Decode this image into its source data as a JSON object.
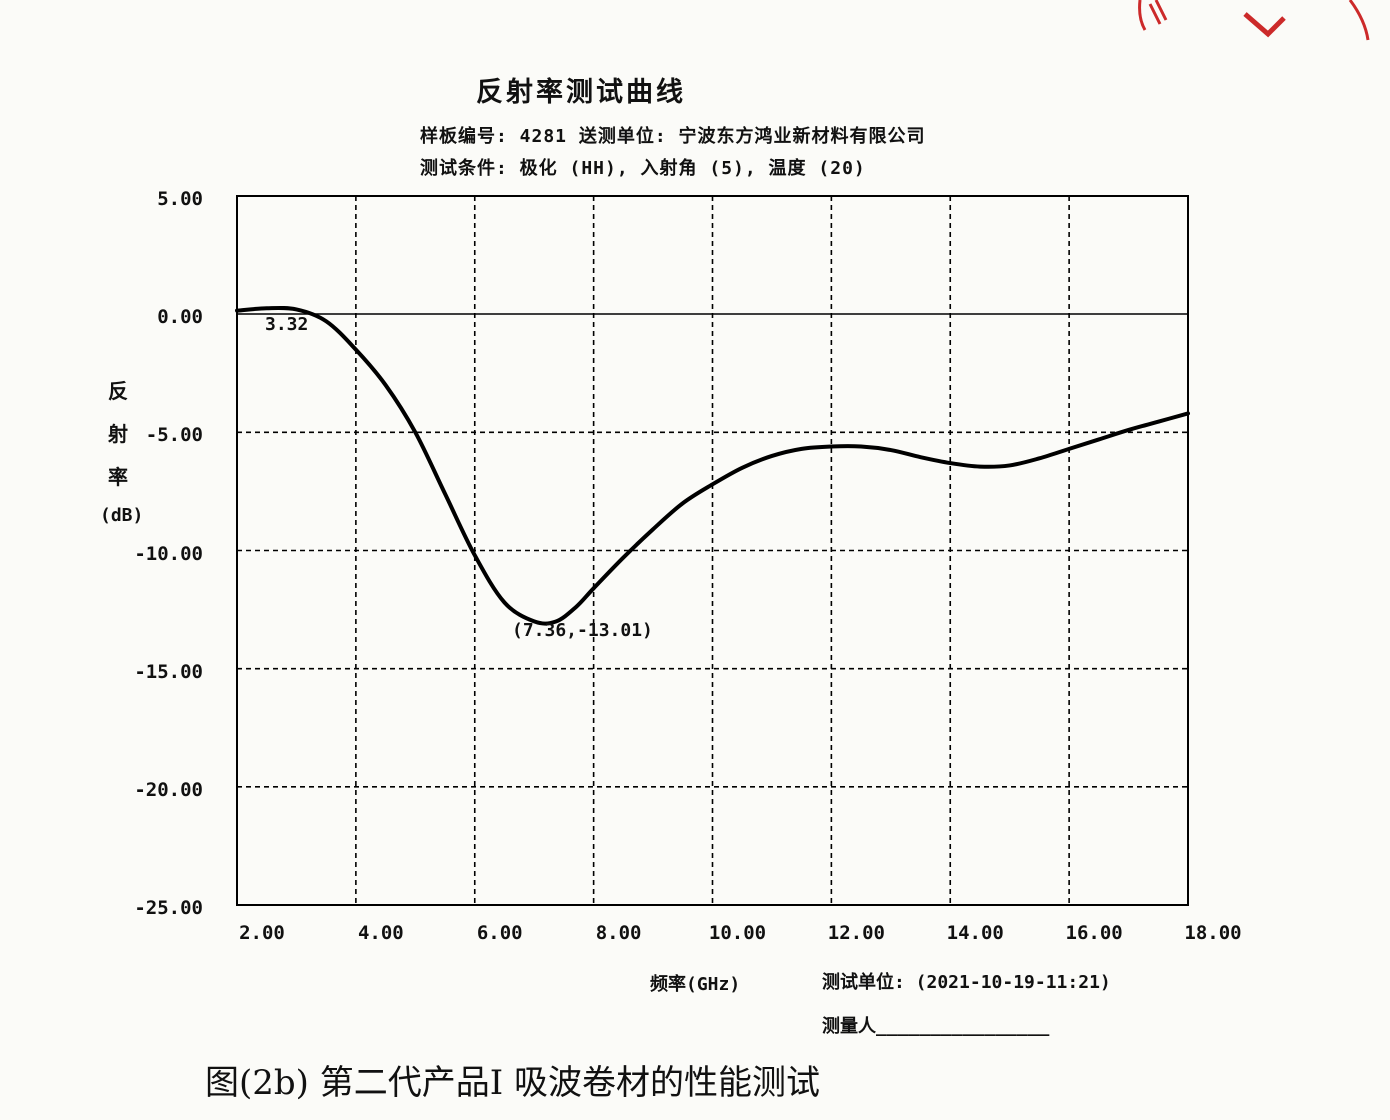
{
  "title": "反射率测试曲线",
  "meta": {
    "line1": "样板编号: 4281     送测单位: 宁波东方鸿业新材料有限公司",
    "line2": "测试条件: 极化 (HH),   入射角 (5),   温度 (20)"
  },
  "ylabel_chars": [
    "反",
    "射",
    "率"
  ],
  "ylabel_unit": "(dB)",
  "xlabel": "频率(GHz)",
  "test_unit_label": "测试单位: (2021-10-19-11:21)",
  "tester_label": "测量人________________",
  "caption": "图(2b)  第二代产品I 吸波卷材的性能测试",
  "colors": {
    "curve": "#000000",
    "grid": "#000000",
    "background": "#fbfbf8",
    "stamp": "#cc2a2a"
  },
  "chart_data": {
    "type": "line",
    "title": "反射率测试曲线",
    "xlabel": "频率(GHz)",
    "ylabel": "反射率(dB)",
    "xlim": [
      2,
      18
    ],
    "ylim": [
      -25,
      5
    ],
    "x_ticks": [
      "2.00",
      "4.00",
      "6.00",
      "8.00",
      "10.00",
      "12.00",
      "14.00",
      "16.00",
      "18.00"
    ],
    "y_ticks": [
      "5.00",
      "0.00",
      "-5.00",
      "-10.00",
      "-15.00",
      "-20.00",
      "-25.00"
    ],
    "grid": true,
    "annotations": [
      {
        "text": "3.32",
        "x": 2.9,
        "y": 0.2
      },
      {
        "text": "(7.36,-13.01)",
        "x": 7.36,
        "y": -13.01
      }
    ],
    "series": [
      {
        "x": [
          2.0,
          2.5,
          3.0,
          3.5,
          4.0,
          4.5,
          5.0,
          5.5,
          6.0,
          6.5,
          7.0,
          7.36,
          7.7,
          8.0,
          8.5,
          9.0,
          9.5,
          10.0,
          10.5,
          11.0,
          11.5,
          12.0,
          12.5,
          13.0,
          13.5,
          14.0,
          14.5,
          15.0,
          15.5,
          16.0,
          16.5,
          17.0,
          17.5,
          18.0
        ],
        "y": [
          0.15,
          0.25,
          0.2,
          -0.3,
          -1.5,
          -3.0,
          -5.0,
          -7.6,
          -10.2,
          -12.2,
          -13.0,
          -13.01,
          -12.4,
          -11.6,
          -10.3,
          -9.1,
          -8.0,
          -7.2,
          -6.5,
          -6.0,
          -5.7,
          -5.6,
          -5.6,
          -5.75,
          -6.05,
          -6.3,
          -6.45,
          -6.4,
          -6.1,
          -5.7,
          -5.3,
          -4.9,
          -4.55,
          -4.2
        ]
      }
    ]
  }
}
